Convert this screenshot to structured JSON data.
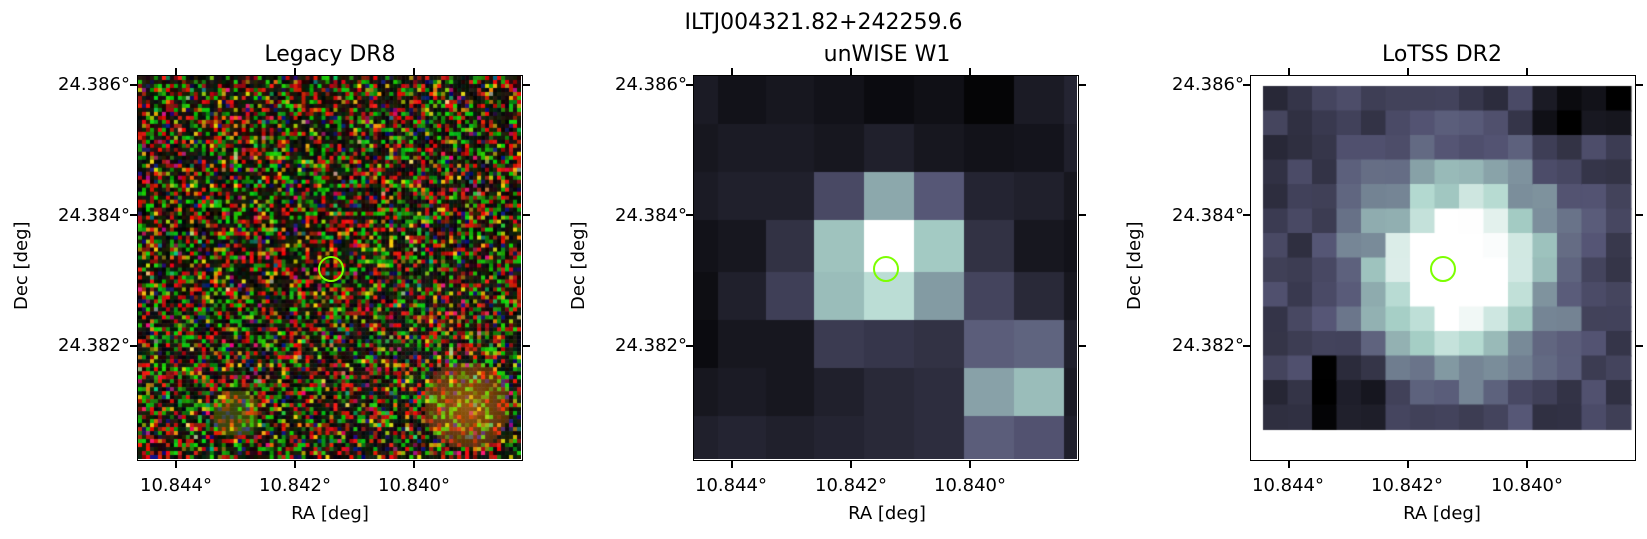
{
  "figure": {
    "title": "ILTJ004321.82+242259.6"
  },
  "panels": [
    {
      "title": "Legacy DR8",
      "xlabel": "RA [deg]",
      "ylabel": "Dec [deg]",
      "xticks": [
        "10.844°",
        "10.842°",
        "10.840°"
      ],
      "yticks": [
        "24.386°",
        "24.384°",
        "24.382°"
      ],
      "image_kind": "rgb-noise"
    },
    {
      "title": "unWISE W1",
      "xlabel": "RA [deg]",
      "ylabel": "Dec [deg]",
      "xticks": [
        "10.844°",
        "10.842°",
        "10.840°"
      ],
      "yticks": [
        "24.386°",
        "24.384°",
        "24.382°"
      ],
      "image_kind": "bone-coarse"
    },
    {
      "title": "LoTSS DR2",
      "xlabel": "RA [deg]",
      "ylabel": "Dec [deg]",
      "xticks": [
        "10.844°",
        "10.842°",
        "10.840°"
      ],
      "yticks": [
        "24.386°",
        "24.384°",
        "24.382°"
      ],
      "image_kind": "bone-fine"
    }
  ],
  "marker_color": "#7cff00"
}
